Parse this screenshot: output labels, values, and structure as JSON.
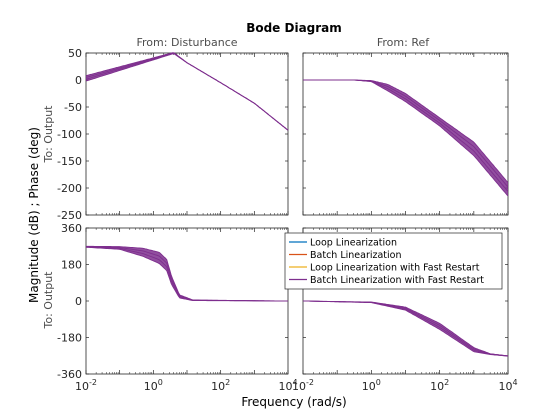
{
  "chart_data": {
    "type": "line",
    "title": "Bode Diagram",
    "xlabel": "Frequency  (rad/s)",
    "ylabel": "Magnitude (dB) ; Phase (deg)",
    "column_titles": [
      "From: Disturbance",
      "From: Ref"
    ],
    "row_labels": [
      "To: Output",
      "To: Output"
    ],
    "x_scale": "log",
    "xlim": [
      0.01,
      10000
    ],
    "x_tick_labels": [
      {
        "base": "10",
        "exp": "-2"
      },
      {
        "base": "10",
        "exp": "0"
      },
      {
        "base": "10",
        "exp": "2"
      },
      {
        "base": "10",
        "exp": "4"
      }
    ],
    "magnitude_ylim": [
      -250,
      50
    ],
    "magnitude_ticks": [
      "50",
      "0",
      "-50",
      "-100",
      "-150",
      "-200",
      "-250"
    ],
    "phase_ylim": [
      -360,
      360
    ],
    "phase_ticks": [
      "360",
      "180",
      "0",
      "-180",
      "-360"
    ],
    "grid": false,
    "legend_position": "inside-middle",
    "series": [
      {
        "name": "Loop Linearization",
        "color": "#0072BD"
      },
      {
        "name": "Batch Linearization",
        "color": "#D95319"
      },
      {
        "name": "Loop Linearization with Fast Restart",
        "color": "#EDB120"
      },
      {
        "name": "Batch Linearization with Fast Restart",
        "color": "#7E2F8E"
      }
    ],
    "panels": {
      "disturbance_magnitude": {
        "band_upper": [
          [
            0.01,
            8
          ],
          [
            4,
            51
          ],
          [
            10,
            32
          ],
          [
            100,
            -5
          ],
          [
            1000,
            -43
          ],
          [
            10000,
            -93
          ]
        ],
        "band_lower": [
          [
            0.01,
            -2
          ],
          [
            4,
            49
          ],
          [
            10,
            32
          ],
          [
            100,
            -5
          ],
          [
            1000,
            -43
          ],
          [
            10000,
            -93
          ]
        ]
      },
      "ref_magnitude": {
        "band_upper": [
          [
            0.01,
            0
          ],
          [
            0.3,
            0
          ],
          [
            1,
            -1
          ],
          [
            3,
            -8
          ],
          [
            10,
            -25
          ],
          [
            100,
            -70
          ],
          [
            1000,
            -115
          ],
          [
            10000,
            -190
          ]
        ],
        "band_lower": [
          [
            0.01,
            0
          ],
          [
            0.3,
            0
          ],
          [
            1,
            -3
          ],
          [
            3,
            -20
          ],
          [
            10,
            -40
          ],
          [
            100,
            -85
          ],
          [
            1000,
            -140
          ],
          [
            10000,
            -215
          ]
        ]
      },
      "disturbance_phase": {
        "band_upper": [
          [
            0.01,
            270
          ],
          [
            0.1,
            268
          ],
          [
            0.5,
            260
          ],
          [
            1.5,
            240
          ],
          [
            2.5,
            205
          ],
          [
            3.5,
            120
          ],
          [
            6,
            30
          ],
          [
            15,
            5
          ],
          [
            10000,
            0
          ]
        ],
        "band_lower": [
          [
            0.01,
            265
          ],
          [
            0.1,
            255
          ],
          [
            0.5,
            220
          ],
          [
            1.5,
            185
          ],
          [
            2.5,
            150
          ],
          [
            3.5,
            80
          ],
          [
            6,
            15
          ],
          [
            15,
            2
          ],
          [
            10000,
            0
          ]
        ]
      },
      "ref_phase": {
        "band_upper": [
          [
            0.01,
            0
          ],
          [
            1,
            -5
          ],
          [
            10,
            -30
          ],
          [
            100,
            -110
          ],
          [
            1000,
            -230
          ],
          [
            3000,
            -260
          ],
          [
            10000,
            -270
          ]
        ],
        "band_lower": [
          [
            0.01,
            0
          ],
          [
            1,
            -8
          ],
          [
            10,
            -45
          ],
          [
            100,
            -140
          ],
          [
            1000,
            -250
          ],
          [
            3000,
            -264
          ],
          [
            10000,
            -272
          ]
        ]
      }
    }
  }
}
